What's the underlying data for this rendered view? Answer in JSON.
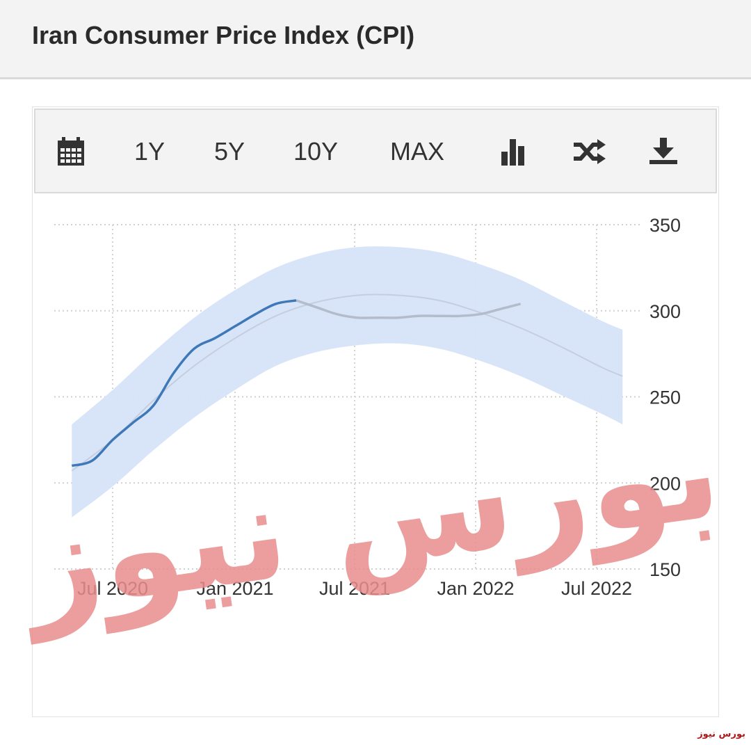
{
  "page": {
    "title": "Iran Consumer Price Index (CPI)",
    "credit": "بورس نیوز",
    "watermark": "بورس نیوز"
  },
  "toolbar": {
    "calendar_icon": "calendar-icon",
    "btn_1y": "1Y",
    "btn_5y": "5Y",
    "btn_10y": "10Y",
    "btn_max": "MAX",
    "chart_type_icon": "bar-chart-icon",
    "compare_icon": "shuffle-icon",
    "download_icon": "download-icon"
  },
  "chart_data": {
    "type": "line",
    "title": "Iran Consumer Price Index (CPI)",
    "xlabel": "",
    "ylabel": "",
    "y_axis_position": "right",
    "ylim": [
      150,
      350
    ],
    "yticks": [
      150,
      200,
      250,
      300,
      350
    ],
    "xticks": [
      "Jul 2020",
      "Jan 2021",
      "Jul 2021",
      "Jan 2022",
      "Jul 2022"
    ],
    "grid": true,
    "legend": "none",
    "colors": {
      "actual": "#3e78b8",
      "forecast": "#b3bccb",
      "band": "#d6e4f8",
      "trend": "#c5cede",
      "watermark": "#e88e8c"
    },
    "series": [
      {
        "name": "",
        "role": "actual",
        "x": [
          "2020-05",
          "2020-06",
          "2020-07",
          "2020-08",
          "2020-09",
          "2020-10",
          "2020-11",
          "2020-12",
          "2021-01",
          "2021-02",
          "2021-03",
          "2021-04"
        ],
        "values": [
          210,
          213,
          225,
          235,
          245,
          264,
          278,
          284,
          291,
          298,
          304,
          306
        ]
      },
      {
        "name": "",
        "role": "forecast",
        "x": [
          "2021-04",
          "2021-05",
          "2021-06",
          "2021-07",
          "2021-08",
          "2021-09",
          "2021-10",
          "2021-11",
          "2021-12",
          "2022-01",
          "2022-02",
          "2022-03"
        ],
        "values": [
          306,
          302,
          298,
          296,
          296,
          296,
          297,
          297,
          297,
          298,
          301,
          304
        ]
      },
      {
        "name": "",
        "role": "trend",
        "x": [
          "2020-05",
          "2020-07",
          "2020-09",
          "2020-11",
          "2021-01",
          "2021-03",
          "2021-05",
          "2021-07",
          "2021-09",
          "2021-11",
          "2022-01",
          "2022-03",
          "2022-05",
          "2022-07",
          "2022-08"
        ],
        "values": [
          207,
          225,
          248,
          268,
          284,
          297,
          305,
          309,
          309,
          306,
          299,
          290,
          279,
          267,
          262
        ]
      },
      {
        "name": "",
        "role": "band-upper",
        "x": [
          "2020-05",
          "2020-07",
          "2020-09",
          "2020-11",
          "2021-01",
          "2021-03",
          "2021-05",
          "2021-07",
          "2021-09",
          "2021-11",
          "2022-01",
          "2022-03",
          "2022-05",
          "2022-07",
          "2022-08"
        ],
        "values": [
          234,
          254,
          276,
          296,
          312,
          325,
          333,
          337,
          337,
          334,
          327,
          318,
          306,
          294,
          289
        ]
      },
      {
        "name": "",
        "role": "band-lower",
        "x": [
          "2020-05",
          "2020-07",
          "2020-09",
          "2020-11",
          "2021-01",
          "2021-03",
          "2021-05",
          "2021-07",
          "2021-09",
          "2021-11",
          "2022-01",
          "2022-03",
          "2022-05",
          "2022-07",
          "2022-08"
        ],
        "values": [
          180,
          198,
          219,
          238,
          254,
          268,
          276,
          280,
          281,
          278,
          271,
          262,
          251,
          240,
          234
        ]
      }
    ]
  }
}
